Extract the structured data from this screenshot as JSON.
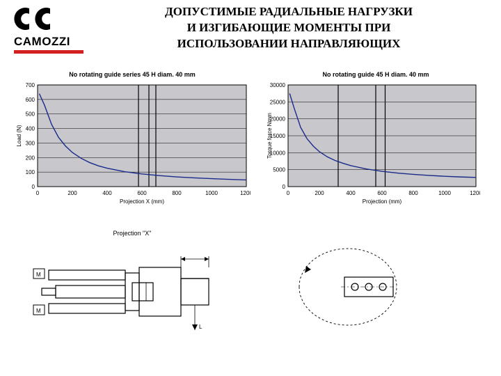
{
  "logo": {
    "text": "CAMOZZI"
  },
  "title": {
    "line1": "ДОПУСТИМЫЕ РАДИАЛЬНЫЕ НАГРУЗКИ",
    "line2": "И ИЗГИБАЮЩИЕ МОМЕНТЫ ПРИ",
    "line3": "ИСПОЛЬЗОВАНИИ НАПРАВЛЯЮЩИХ"
  },
  "chart1": {
    "type": "line",
    "title": "No rotating guide series 45 H diam. 40 mm",
    "xlabel": "Projection X (mm)",
    "ylabel": "Load (N)",
    "xlim": [
      0,
      1200
    ],
    "ylim": [
      0,
      700
    ],
    "xtick_step": 200,
    "ytick_step": 100,
    "background_color": "#c7c7cc",
    "line_color": "#1a2a8a",
    "line_width": 1.4,
    "grid_color": "#000000",
    "vlines": [
      580,
      640,
      680
    ],
    "data": [
      [
        10,
        640
      ],
      [
        40,
        560
      ],
      [
        80,
        430
      ],
      [
        120,
        340
      ],
      [
        160,
        280
      ],
      [
        200,
        235
      ],
      [
        250,
        195
      ],
      [
        300,
        165
      ],
      [
        350,
        143
      ],
      [
        400,
        127
      ],
      [
        500,
        103
      ],
      [
        600,
        87
      ],
      [
        700,
        76
      ],
      [
        800,
        67
      ],
      [
        900,
        60
      ],
      [
        1000,
        55
      ],
      [
        1100,
        50
      ],
      [
        1200,
        46
      ]
    ]
  },
  "chart2": {
    "type": "line",
    "title": "No rotating guide 45 H diam. 40 mm",
    "xlabel": "Projection (mm)",
    "ylabel": "Torque force Nmm",
    "xlim": [
      0,
      1200
    ],
    "ylim": [
      0,
      30000
    ],
    "xtick_step": 200,
    "ytick_step": 5000,
    "background_color": "#c7c7cc",
    "line_color": "#1a2a8a",
    "line_width": 1.4,
    "grid_color": "#000000",
    "vlines": [
      320,
      560,
      620
    ],
    "data": [
      [
        10,
        27500
      ],
      [
        40,
        23000
      ],
      [
        80,
        17500
      ],
      [
        120,
        14200
      ],
      [
        160,
        12000
      ],
      [
        200,
        10300
      ],
      [
        250,
        8800
      ],
      [
        300,
        7700
      ],
      [
        350,
        6900
      ],
      [
        400,
        6200
      ],
      [
        500,
        5200
      ],
      [
        600,
        4500
      ],
      [
        700,
        4000
      ],
      [
        800,
        3600
      ],
      [
        900,
        3300
      ],
      [
        1000,
        3050
      ],
      [
        1100,
        2850
      ],
      [
        1200,
        2700
      ]
    ]
  },
  "diagram": {
    "projection_label": "Projection \"X\"",
    "m_label": "M",
    "l_label": "L"
  },
  "colors": {
    "accent_red": "#d32020",
    "logo_black": "#000000"
  }
}
